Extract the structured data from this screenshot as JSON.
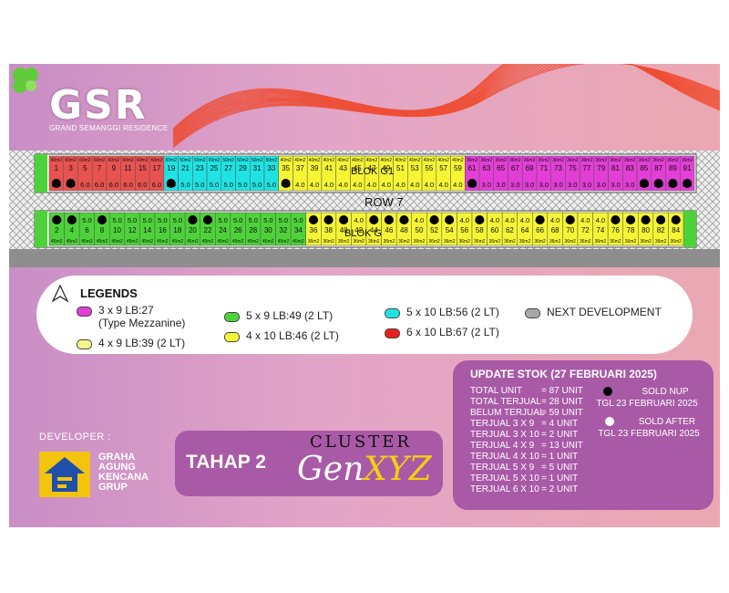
{
  "brand": {
    "logo": "GSR",
    "tagline": "GRAND SEMANGGI RESIDENCE"
  },
  "siteplan": {
    "blok_g1_label": "BLOK G1",
    "row_label": "ROW 7",
    "blok_g_label": "BLOK G",
    "colors": {
      "red": "#e8524f",
      "cyan": "#1fe3e3",
      "yellow": "#f5f533",
      "magenta": "#e33ed6",
      "green": "#4ed23a",
      "gray": "#8e8e8e"
    },
    "top_row": [
      {
        "num": "1",
        "type": "red",
        "area": "60m2",
        "width": "6.0",
        "nup": true
      },
      {
        "num": "3",
        "type": "red",
        "area": "60m2",
        "width": "6.0",
        "nup": true
      },
      {
        "num": "5",
        "type": "red",
        "area": "60m2",
        "width": "6.0"
      },
      {
        "num": "7",
        "type": "red",
        "area": "60m2",
        "width": "6.0"
      },
      {
        "num": "9",
        "type": "red",
        "area": "60m2",
        "width": "6.0"
      },
      {
        "num": "11",
        "type": "red",
        "area": "60m2",
        "width": "6.0"
      },
      {
        "num": "15",
        "type": "red",
        "area": "60m2",
        "width": "6.0"
      },
      {
        "num": "17",
        "type": "red",
        "area": "60m2",
        "width": "6.0"
      },
      {
        "num": "19",
        "type": "cyan",
        "area": "50m2",
        "width": "5.0",
        "nup": true
      },
      {
        "num": "21",
        "type": "cyan",
        "area": "50m2",
        "width": "5.0"
      },
      {
        "num": "23",
        "type": "cyan",
        "area": "50m2",
        "width": "5.0"
      },
      {
        "num": "25",
        "type": "cyan",
        "area": "50m2",
        "width": "5.0"
      },
      {
        "num": "27",
        "type": "cyan",
        "area": "50m2",
        "width": "5.0"
      },
      {
        "num": "29",
        "type": "cyan",
        "area": "50m2",
        "width": "5.0"
      },
      {
        "num": "31",
        "type": "cyan",
        "area": "50m2",
        "width": "5.0"
      },
      {
        "num": "33",
        "type": "cyan",
        "area": "50m2",
        "width": "5.0"
      },
      {
        "num": "35",
        "type": "yellow",
        "area": "40m2",
        "width": "4.0",
        "nup": true
      },
      {
        "num": "37",
        "type": "yellow",
        "area": "40m2",
        "width": "4.0"
      },
      {
        "num": "39",
        "type": "yellow",
        "area": "40m2",
        "width": "4.0"
      },
      {
        "num": "41",
        "type": "yellow",
        "area": "40m2",
        "width": "4.0"
      },
      {
        "num": "43",
        "type": "yellow",
        "area": "40m2",
        "width": "4.0"
      },
      {
        "num": "45",
        "type": "yellow",
        "area": "40m2",
        "width": "4.0"
      },
      {
        "num": "47",
        "type": "yellow",
        "area": "40m2",
        "width": "4.0"
      },
      {
        "num": "49",
        "type": "yellow",
        "area": "40m2",
        "width": "4.0"
      },
      {
        "num": "51",
        "type": "yellow",
        "area": "40m2",
        "width": "4.0"
      },
      {
        "num": "53",
        "type": "yellow",
        "area": "40m2",
        "width": "4.0"
      },
      {
        "num": "55",
        "type": "yellow",
        "area": "40m2",
        "width": "4.0"
      },
      {
        "num": "57",
        "type": "yellow",
        "area": "40m2",
        "width": "4.0"
      },
      {
        "num": "59",
        "type": "yellow",
        "area": "40m2",
        "width": "4.0"
      },
      {
        "num": "61",
        "type": "magenta",
        "area": "36m2",
        "width": "3.0",
        "nup": true
      },
      {
        "num": "63",
        "type": "magenta",
        "area": "36m2",
        "width": "3.0"
      },
      {
        "num": "65",
        "type": "magenta",
        "area": "36m2",
        "width": "3.0"
      },
      {
        "num": "67",
        "type": "magenta",
        "area": "36m2",
        "width": "3.0"
      },
      {
        "num": "69",
        "type": "magenta",
        "area": "36m2",
        "width": "3.0"
      },
      {
        "num": "71",
        "type": "magenta",
        "area": "36m2",
        "width": "3.0"
      },
      {
        "num": "73",
        "type": "magenta",
        "area": "36m2",
        "width": "3.0"
      },
      {
        "num": "75",
        "type": "magenta",
        "area": "36m2",
        "width": "3.0"
      },
      {
        "num": "77",
        "type": "magenta",
        "area": "36m2",
        "width": "3.0"
      },
      {
        "num": "79",
        "type": "magenta",
        "area": "36m2",
        "width": "3.0"
      },
      {
        "num": "81",
        "type": "magenta",
        "area": "36m2",
        "width": "3.0"
      },
      {
        "num": "83",
        "type": "magenta",
        "area": "36m2",
        "width": "3.0"
      },
      {
        "num": "85",
        "type": "magenta",
        "area": "36m2",
        "width": "3.0",
        "nup": true
      },
      {
        "num": "87",
        "type": "magenta",
        "area": "36m2",
        "width": "3.0",
        "nup": true
      },
      {
        "num": "89",
        "type": "magenta",
        "area": "36m2",
        "width": "3.0",
        "nup": true
      },
      {
        "num": "91",
        "type": "magenta",
        "area": "36m2",
        "width": "3.0",
        "nup": true
      }
    ],
    "bottom_row": [
      {
        "num": "2",
        "type": "green",
        "area": "45m2",
        "width": "5.0",
        "nup": true
      },
      {
        "num": "4",
        "type": "green",
        "area": "45m2",
        "width": "5.0",
        "nup": true
      },
      {
        "num": "6",
        "type": "green",
        "area": "45m2",
        "width": "5.0"
      },
      {
        "num": "8",
        "type": "green",
        "area": "45m2",
        "width": "5.0",
        "nup": true
      },
      {
        "num": "10",
        "type": "green",
        "area": "45m2",
        "width": "5.0"
      },
      {
        "num": "12",
        "type": "green",
        "area": "45m2",
        "width": "5.0"
      },
      {
        "num": "14",
        "type": "green",
        "area": "45m2",
        "width": "5.0"
      },
      {
        "num": "16",
        "type": "green",
        "area": "45m2",
        "width": "5.0"
      },
      {
        "num": "18",
        "type": "green",
        "area": "45m2",
        "width": "5.0"
      },
      {
        "num": "20",
        "type": "green",
        "area": "45m2",
        "width": "5.0",
        "nup": true
      },
      {
        "num": "22",
        "type": "green",
        "area": "45m2",
        "width": "5.0",
        "nup": true
      },
      {
        "num": "24",
        "type": "green",
        "area": "45m2",
        "width": "5.0"
      },
      {
        "num": "26",
        "type": "green",
        "area": "45m2",
        "width": "5.0"
      },
      {
        "num": "28",
        "type": "green",
        "area": "45m2",
        "width": "5.0"
      },
      {
        "num": "30",
        "type": "green",
        "area": "45m2",
        "width": "5.0"
      },
      {
        "num": "32",
        "type": "green",
        "area": "45m2",
        "width": "5.0"
      },
      {
        "num": "34",
        "type": "green",
        "area": "45m2",
        "width": "5.0"
      },
      {
        "num": "36",
        "type": "yellow",
        "area": "36m2",
        "width": "4.0",
        "nup": true
      },
      {
        "num": "38",
        "type": "yellow",
        "area": "36m2",
        "width": "4.0",
        "nup": true
      },
      {
        "num": "40",
        "type": "yellow",
        "area": "36m2",
        "width": "4.0",
        "nup": true
      },
      {
        "num": "42",
        "type": "yellow",
        "area": "36m2",
        "width": "4.0"
      },
      {
        "num": "44",
        "type": "yellow",
        "area": "36m2",
        "width": "4.0",
        "nup": true
      },
      {
        "num": "46",
        "type": "yellow",
        "area": "36m2",
        "width": "4.0",
        "nup": true
      },
      {
        "num": "48",
        "type": "yellow",
        "area": "36m2",
        "width": "4.0",
        "nup": true
      },
      {
        "num": "50",
        "type": "yellow",
        "area": "36m2",
        "width": "4.0"
      },
      {
        "num": "52",
        "type": "yellow",
        "area": "36m2",
        "width": "4.0",
        "nup": true
      },
      {
        "num": "54",
        "type": "yellow",
        "area": "36m2",
        "width": "4.0",
        "nup": true
      },
      {
        "num": "56",
        "type": "yellow",
        "area": "36m2",
        "width": "4.0"
      },
      {
        "num": "58",
        "type": "yellow",
        "area": "36m2",
        "width": "4.0",
        "nup": true
      },
      {
        "num": "60",
        "type": "yellow",
        "area": "36m2",
        "width": "4.0"
      },
      {
        "num": "62",
        "type": "yellow",
        "area": "36m2",
        "width": "4.0"
      },
      {
        "num": "64",
        "type": "yellow",
        "area": "36m2",
        "width": "4.0"
      },
      {
        "num": "66",
        "type": "yellow",
        "area": "36m2",
        "width": "4.0",
        "nup": true
      },
      {
        "num": "68",
        "type": "yellow",
        "area": "36m2",
        "width": "4.0"
      },
      {
        "num": "70",
        "type": "yellow",
        "area": "36m2",
        "width": "4.0",
        "nup": true
      },
      {
        "num": "72",
        "type": "yellow",
        "area": "36m2",
        "width": "4.0"
      },
      {
        "num": "74",
        "type": "yellow",
        "area": "36m2",
        "width": "4.0"
      },
      {
        "num": "76",
        "type": "yellow",
        "area": "36m2",
        "width": "4.0",
        "nup": true
      },
      {
        "num": "78",
        "type": "yellow",
        "area": "36m2",
        "width": "4.0",
        "nup": true
      },
      {
        "num": "80",
        "type": "yellow",
        "area": "36m2",
        "width": "4.0",
        "nup": true
      },
      {
        "num": "82",
        "type": "yellow",
        "area": "36m2",
        "width": "4.0",
        "nup": true
      },
      {
        "num": "84",
        "type": "yellow",
        "area": "36m2",
        "width": "4.0",
        "nup": true
      }
    ]
  },
  "legends": {
    "title": "LEGENDS",
    "items": [
      {
        "label": "3 x 9 LB:27",
        "sub": "(Type Mezzanine)",
        "color": "#e33ed6"
      },
      {
        "label": "4 x 9 LB:39 (2 LT)",
        "color": "#f5f58a"
      },
      {
        "label": "5 x 9 LB:49 (2 LT)",
        "color": "#4ed23a"
      },
      {
        "label": "4 x 10 LB:46 (2 LT)",
        "color": "#f5f533"
      },
      {
        "label": "5 x 10 LB:56 (2 LT)",
        "color": "#1fe3e3"
      },
      {
        "label": "6 x 10 LB:67 (2 LT)",
        "color": "#e8201f"
      },
      {
        "label": "NEXT DEVELOPMENT",
        "color": "#a8a8a8"
      }
    ]
  },
  "developer": {
    "label": "DEVELOPER :",
    "name": [
      "GRAHA",
      "AGUNG",
      "KENCANA",
      "GRUP"
    ]
  },
  "tahap": {
    "label": "TAHAP 2",
    "cluster": "CLUSTER",
    "gen": "Gen",
    "xyz": "XYZ"
  },
  "stock": {
    "title": "UPDATE STOK (27 FEBRUARI 2025)",
    "rows": [
      {
        "label": "TOTAL UNIT",
        "value": "= 87 UNIT"
      },
      {
        "label": "TOTAL TERJUAL",
        "value": "= 28 UNIT"
      },
      {
        "label": "BELUM TERJUAL",
        "value": "= 59 UNIT"
      },
      {
        "label": "TERJUAL 3 X 9",
        "value": "=   4 UNIT"
      },
      {
        "label": "TERJUAL 3 X 10",
        "value": "=   2 UNIT"
      },
      {
        "label": "TERJUAL 4 X 9",
        "value": "= 13 UNIT"
      },
      {
        "label": "TERJUAL 4 X 10",
        "value": "=   1 UNIT"
      },
      {
        "label": "TERJUAL 5 X 9",
        "value": "=   5 UNIT"
      },
      {
        "label": "TERJUAL 5 X 10",
        "value": "=   1 UNIT"
      },
      {
        "label": "TERJUAL 6 X 10",
        "value": "=   2 UNIT"
      }
    ],
    "sold_nup": "SOLD NUP",
    "sold_nup_date": "TGL 23 FEBRUARI 2025",
    "sold_after": "SOLD AFTER",
    "sold_after_date": "TGL 23 FEBRUARI 2025"
  }
}
